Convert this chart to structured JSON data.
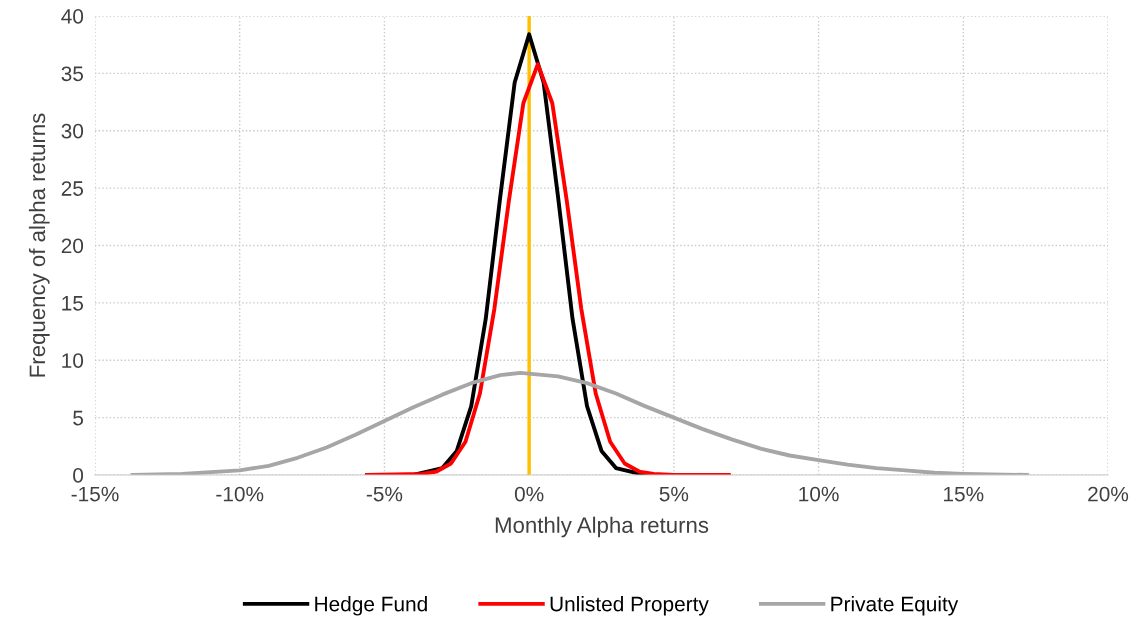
{
  "chart_data": {
    "type": "line",
    "xlabel": "Monthly Alpha returns",
    "ylabel": "Frequency of alpha returns",
    "xlim": [
      -15,
      20
    ],
    "xticks": [
      {
        "value": -15,
        "label": "-15%"
      },
      {
        "value": -10,
        "label": "-10%"
      },
      {
        "value": -5,
        "label": "-5%"
      },
      {
        "value": 0,
        "label": "0%"
      },
      {
        "value": 5,
        "label": "5%"
      },
      {
        "value": 10,
        "label": "10%"
      },
      {
        "value": 15,
        "label": "15%"
      },
      {
        "value": 20,
        "label": "20%"
      }
    ],
    "ylim": [
      0,
      40
    ],
    "yticks": [
      0,
      5,
      10,
      15,
      20,
      25,
      30,
      35,
      40
    ],
    "grid": true,
    "legend": "bottom",
    "line_style": "solid",
    "marker": "none",
    "ref_lines": [
      {
        "axis": "x",
        "value": 0,
        "label": null,
        "color": "#ffc000"
      }
    ],
    "series": [
      {
        "name": "Hedge Fund",
        "color": "#000000",
        "x": [
          -5.6,
          -4,
          -3,
          -2.5,
          -2,
          -1.5,
          -1,
          -0.5,
          0,
          0.5,
          1,
          1.5,
          2,
          2.5,
          3,
          4,
          5,
          6.3
        ],
        "values": [
          0,
          0,
          0.6,
          2.1,
          6.0,
          13.6,
          24.2,
          34.2,
          38.4,
          34.2,
          24.2,
          13.6,
          6.0,
          2.1,
          0.6,
          0,
          0,
          0
        ]
      },
      {
        "name": "Unlisted Property",
        "color": "#ff0000",
        "x": [
          -5.6,
          -3.7,
          -3.2,
          -2.7,
          -2.2,
          -1.7,
          -1.2,
          -0.7,
          -0.2,
          0.3,
          0.8,
          1.3,
          1.8,
          2.3,
          2.8,
          3.3,
          3.8,
          4.3,
          5,
          6.9
        ],
        "values": [
          0,
          0.1,
          0.3,
          1,
          2.9,
          7.1,
          14.5,
          23.9,
          32.4,
          35.8,
          32.4,
          23.9,
          14.5,
          7.1,
          2.9,
          1,
          0.3,
          0.1,
          0,
          0
        ]
      },
      {
        "name": "Private Equity",
        "color": "#a6a6a6",
        "x": [
          -13.7,
          -12,
          -10,
          -9,
          -8,
          -7,
          -6,
          -5,
          -4,
          -3,
          -2,
          -1,
          -0.3,
          1,
          2,
          3,
          4,
          5,
          6,
          7,
          8,
          9,
          10,
          11,
          12,
          13,
          14,
          15,
          17.2
        ],
        "values": [
          0,
          0.1,
          0.4,
          0.8,
          1.5,
          2.4,
          3.5,
          4.7,
          5.9,
          7.0,
          8.0,
          8.7,
          8.9,
          8.6,
          8.0,
          7.1,
          6.0,
          5.0,
          4.0,
          3.1,
          2.3,
          1.7,
          1.3,
          0.9,
          0.6,
          0.4,
          0.2,
          0.1,
          0
        ]
      }
    ]
  }
}
